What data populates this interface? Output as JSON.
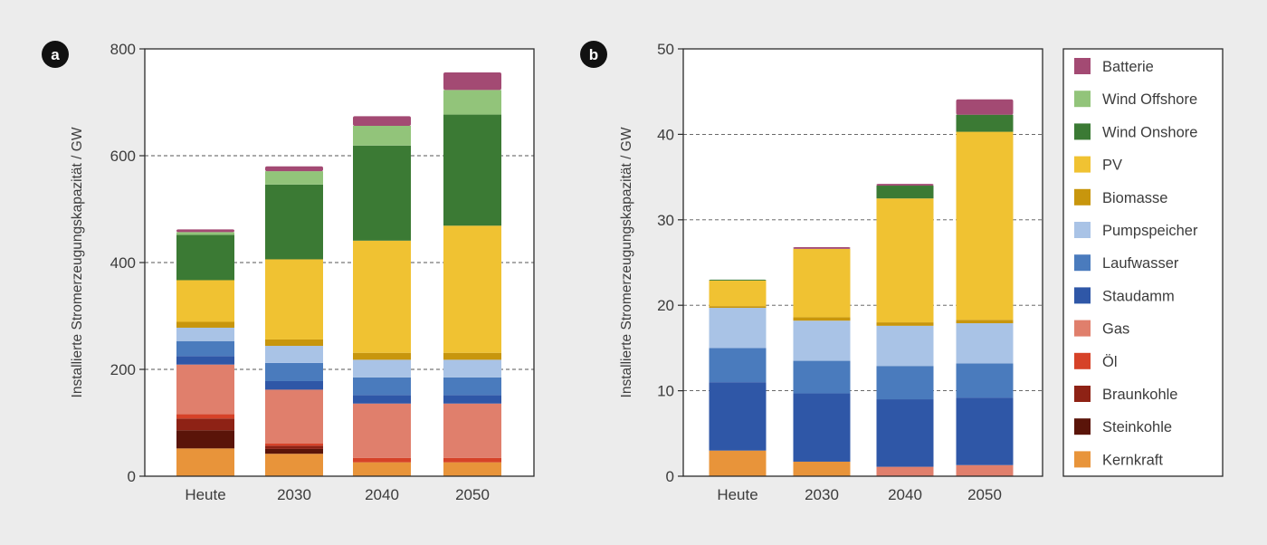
{
  "colors": {
    "Batterie": "#a34a73",
    "Wind Offshore": "#92c47a",
    "Wind Onshore": "#3b7a34",
    "PV": "#f0c232",
    "Biomasse": "#c8960d",
    "Pumpspeicher": "#a9c3e6",
    "Laufwasser": "#4a7bbd",
    "Staudamm": "#2f57a7",
    "Gas": "#e07f6c",
    "Öl": "#d64228",
    "Braunkohle": "#8e2215",
    "Steinkohle": "#5a1409",
    "Kernkraft": "#e8943a"
  },
  "legend": {
    "items": [
      "Batterie",
      "Wind Offshore",
      "Wind Onshore",
      "PV",
      "Biomasse",
      "Pumpspeicher",
      "Laufwasser",
      "Staudamm",
      "Gas",
      "Öl",
      "Braunkohle",
      "Steinkohle",
      "Kernkraft"
    ]
  },
  "chart_data": [
    {
      "type": "bar",
      "stacked": true,
      "panel_label": "a",
      "title": "",
      "xlabel": "",
      "ylabel": "Installierte Stromerzeugungskapazität / GW",
      "ylim": [
        0,
        800
      ],
      "yticks": [
        0,
        200,
        400,
        600,
        800
      ],
      "grid": "dashed horizontal",
      "categories": [
        "Heute",
        "2030",
        "2040",
        "2050"
      ],
      "series": [
        {
          "name": "Kernkraft",
          "values": [
            52,
            42,
            26,
            26
          ]
        },
        {
          "name": "Steinkohle",
          "values": [
            34,
            9,
            0,
            0
          ]
        },
        {
          "name": "Braunkohle",
          "values": [
            22,
            6,
            0,
            0
          ]
        },
        {
          "name": "Öl",
          "values": [
            8,
            4,
            8,
            8
          ]
        },
        {
          "name": "Gas",
          "values": [
            93,
            101,
            102,
            102
          ]
        },
        {
          "name": "Staudamm",
          "values": [
            16,
            16,
            16,
            16
          ]
        },
        {
          "name": "Laufwasser",
          "values": [
            28,
            34,
            33,
            33
          ]
        },
        {
          "name": "Pumpspeicher",
          "values": [
            25,
            32,
            33,
            33
          ]
        },
        {
          "name": "Biomasse",
          "values": [
            11,
            12,
            13,
            13
          ]
        },
        {
          "name": "PV",
          "values": [
            78,
            150,
            210,
            238
          ]
        },
        {
          "name": "Wind Onshore",
          "values": [
            85,
            140,
            178,
            208
          ]
        },
        {
          "name": "Wind Offshore",
          "values": [
            5,
            25,
            37,
            46
          ]
        },
        {
          "name": "Batterie",
          "values": [
            5,
            9,
            18,
            33
          ]
        }
      ]
    },
    {
      "type": "bar",
      "stacked": true,
      "panel_label": "b",
      "title": "",
      "xlabel": "",
      "ylabel": "Installierte Stromerzeugungskapazität / GW",
      "ylim": [
        0,
        50
      ],
      "yticks": [
        0,
        10,
        20,
        30,
        40,
        50
      ],
      "grid": "dashed horizontal",
      "categories": [
        "Heute",
        "2030",
        "2040",
        "2050"
      ],
      "series": [
        {
          "name": "Kernkraft",
          "values": [
            3.0,
            1.7,
            0,
            0
          ]
        },
        {
          "name": "Steinkohle",
          "values": [
            0,
            0,
            0,
            0
          ]
        },
        {
          "name": "Braunkohle",
          "values": [
            0,
            0,
            0,
            0
          ]
        },
        {
          "name": "Öl",
          "values": [
            0,
            0,
            0,
            0
          ]
        },
        {
          "name": "Gas",
          "values": [
            0,
            0,
            1.1,
            1.3
          ]
        },
        {
          "name": "Staudamm",
          "values": [
            8.0,
            8.0,
            7.9,
            7.9
          ]
        },
        {
          "name": "Laufwasser",
          "values": [
            4.0,
            3.8,
            3.9,
            4.0
          ]
        },
        {
          "name": "Pumpspeicher",
          "values": [
            4.7,
            4.7,
            4.7,
            4.7
          ]
        },
        {
          "name": "Biomasse",
          "values": [
            0.2,
            0.4,
            0.4,
            0.4
          ]
        },
        {
          "name": "PV",
          "values": [
            3.0,
            8.0,
            14.5,
            22.0
          ]
        },
        {
          "name": "Wind Onshore",
          "values": [
            0.1,
            0,
            1.5,
            2.0
          ]
        },
        {
          "name": "Wind Offshore",
          "values": [
            0,
            0,
            0,
            0
          ]
        },
        {
          "name": "Batterie",
          "values": [
            0,
            0.2,
            0.2,
            1.8
          ]
        }
      ]
    }
  ]
}
